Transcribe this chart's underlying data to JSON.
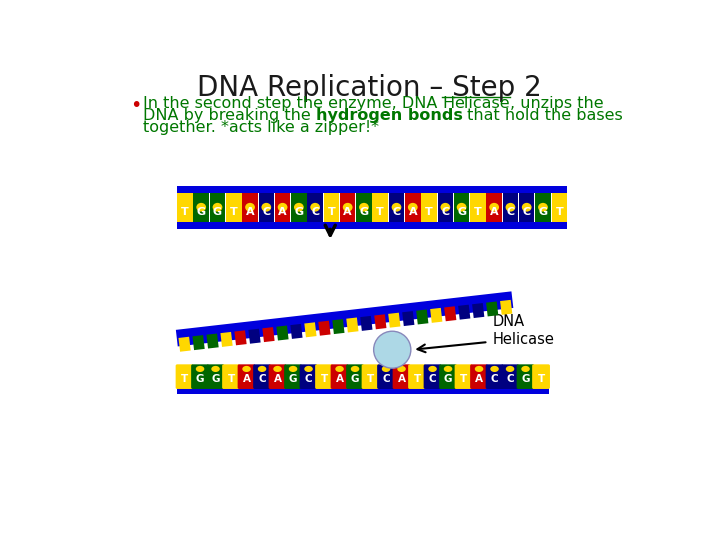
{
  "title": "DNA Replication – Step 2",
  "title_color": "#1a1a1a",
  "title_fontsize": 20,
  "green": "#007700",
  "red_bullet": "#CC0000",
  "sequence": [
    "T",
    "G",
    "G",
    "T",
    "A",
    "C",
    "A",
    "G",
    "C",
    "T",
    "A",
    "G",
    "T",
    "C",
    "A",
    "T",
    "C",
    "G",
    "T",
    "A",
    "C",
    "C",
    "G",
    "T"
  ],
  "base_colors": {
    "T": "#FFD700",
    "A": "#CC0000",
    "G": "#006600",
    "C": "#000080"
  },
  "backbone_color": "#0000DD",
  "background_color": "#FFFFFF",
  "helicase_color": "#ADD8E6"
}
